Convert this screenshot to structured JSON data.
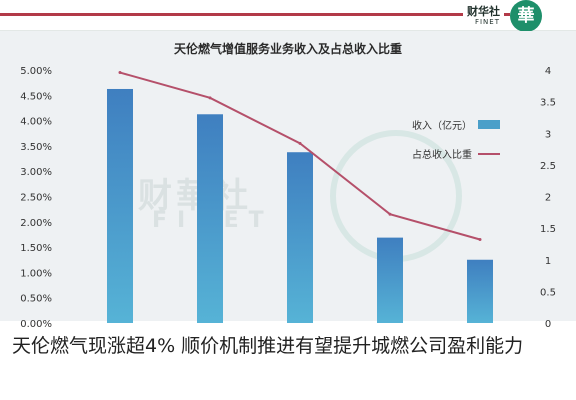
{
  "header": {
    "brand_text": "财华社",
    "brand_sub": "FINET",
    "logo_glyph": "華",
    "accent_color": "#b23a48",
    "logo_color": "#1e8f6a"
  },
  "watermark": {
    "text": "财華社",
    "sub": "FINET"
  },
  "chart_data": {
    "type": "bar",
    "title": "天伦燃气增值服务业务收入及占总收入比重",
    "categories": [
      "",
      "",
      "",
      "",
      ""
    ],
    "series": [
      {
        "name": "收入（亿元）",
        "axis": "right",
        "type": "bar",
        "color": "#4a8fc9",
        "values": [
          3.7,
          3.3,
          2.7,
          1.35,
          1.0
        ]
      },
      {
        "name": "占总收入比重",
        "axis": "left",
        "type": "line",
        "color": "#b5506a",
        "values": [
          4.95,
          4.45,
          3.55,
          2.15,
          1.65
        ]
      }
    ],
    "y_left": {
      "ylim": [
        0,
        5
      ],
      "ticks": [
        0,
        0.5,
        1.0,
        1.5,
        2.0,
        2.5,
        3.0,
        3.5,
        4.0,
        4.5,
        5.0
      ],
      "tick_labels": [
        "0.00%",
        "0.50%",
        "1.00%",
        "1.50%",
        "2.00%",
        "2.50%",
        "3.00%",
        "3.50%",
        "4.00%",
        "4.50%",
        "5.00%"
      ]
    },
    "y_right": {
      "ylim": [
        0,
        4
      ],
      "ticks": [
        0,
        0.5,
        1,
        1.5,
        2,
        2.5,
        3,
        3.5,
        4
      ],
      "tick_labels": [
        "0",
        "0.5",
        "1",
        "1.5",
        "2",
        "2.5",
        "3",
        "3.5",
        "4"
      ]
    },
    "legend": "right",
    "grid": false
  },
  "caption": "天伦燃气现涨超4% 顺价机制推进有望提升城燃公司盈利能力"
}
